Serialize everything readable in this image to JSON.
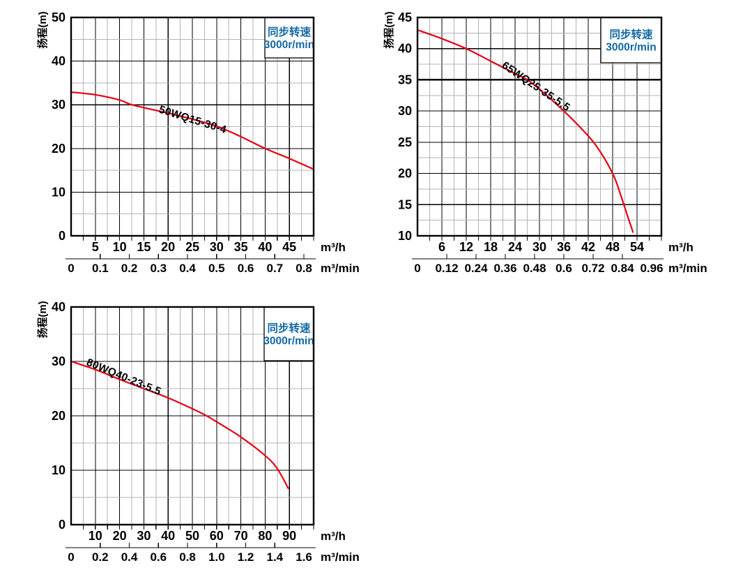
{
  "page": {
    "title": "Pump performance curves",
    "background": "#ffffff"
  },
  "colors": {
    "curve_red": "#e60012",
    "legend_blue": "#1168a6",
    "grid_major": "#000000",
    "grid_minor": "#b3b3b3",
    "text_black": "#000000",
    "plot_background": "#ffffff"
  },
  "chart_data": [
    {
      "type": "line",
      "title": "50WQ15-30-4",
      "ylabel": "扬程(m)",
      "xlabel": "m³/h",
      "xlabel_secondary": "m³/min",
      "legend": [
        "同步转速",
        "3000r/min"
      ],
      "legend_position": "top-right",
      "grid": "on",
      "xlim": [
        0,
        50
      ],
      "ylim": [
        0,
        50
      ],
      "x_major_step": 5,
      "x_minor_step": 2.5,
      "y_major_step": 10,
      "y_minor_step": 5,
      "x_tick_labels": [
        "5",
        "10",
        "15",
        "20",
        "25",
        "30",
        "35",
        "40",
        "45"
      ],
      "x_tick_values": [
        5,
        10,
        15,
        20,
        25,
        30,
        35,
        40,
        45
      ],
      "y_tick_labels": [
        "0",
        "10",
        "20",
        "30",
        "40",
        "50"
      ],
      "y_tick_values": [
        0,
        10,
        20,
        30,
        40,
        50
      ],
      "x2_labels": [
        "0",
        "0.1",
        "0.2",
        "0.3",
        "0.4",
        "0.5",
        "0.6",
        "0.7",
        "0.8"
      ],
      "x2_values": [
        0,
        0.1,
        0.2,
        0.3,
        0.4,
        0.5,
        0.6,
        0.7,
        0.8
      ],
      "x2_tick_values": [
        0.1,
        0.2,
        0.3,
        0.4,
        0.5,
        0.6,
        0.7,
        0.8
      ],
      "bold_y_line": null,
      "series": [
        {
          "name": "50WQ15-30-4",
          "points": [
            [
              0,
              32.9
            ],
            [
              5,
              32.3
            ],
            [
              10,
              31.1
            ],
            [
              12.5,
              30
            ],
            [
              18,
              28.6
            ],
            [
              24,
              27.0
            ],
            [
              30,
              25.1
            ],
            [
              35,
              22.7
            ],
            [
              40,
              20.0
            ],
            [
              45,
              17.7
            ],
            [
              49.7,
              15.4
            ]
          ]
        }
      ]
    },
    {
      "type": "line",
      "title": "65WQ25-35-5.5",
      "ylabel": "扬程(m)",
      "xlabel": "m³/h",
      "xlabel_secondary": "m³/min",
      "legend": [
        "同步转速",
        "3000r/min"
      ],
      "legend_position": "top-right",
      "grid": "on",
      "xlim": [
        0,
        60
      ],
      "ylim": [
        10,
        45
      ],
      "x_major_step": 6,
      "x_minor_step": 3,
      "y_major_step": 5,
      "y_minor_step": 2.5,
      "x_tick_labels": [
        "6",
        "12",
        "18",
        "24",
        "30",
        "36",
        "42",
        "48",
        "54"
      ],
      "x_tick_values": [
        6,
        12,
        18,
        24,
        30,
        36,
        42,
        48,
        54
      ],
      "y_tick_labels": [
        "10",
        "15",
        "20",
        "25",
        "30",
        "35",
        "40",
        "45"
      ],
      "y_tick_values": [
        10,
        15,
        20,
        25,
        30,
        35,
        40,
        45
      ],
      "x2_labels": [
        "0",
        "0.12",
        "0.24",
        "0.36",
        "0.48",
        "0.6",
        "0.72",
        "0.84",
        "0.96"
      ],
      "x2_values": [
        0,
        0.12,
        0.24,
        0.36,
        0.48,
        0.6,
        0.72,
        0.84,
        0.96
      ],
      "x2_tick_values": [
        0.12,
        0.24,
        0.36,
        0.48,
        0.6,
        0.72,
        0.84
      ],
      "bold_y_line": 35,
      "series": [
        {
          "name": "65WQ25-35-5.5",
          "points": [
            [
              0,
              43
            ],
            [
              6,
              41.6
            ],
            [
              12,
              40
            ],
            [
              18,
              38
            ],
            [
              24,
              36
            ],
            [
              27,
              35
            ],
            [
              30,
              33.5
            ],
            [
              36,
              30
            ],
            [
              40,
              27.4
            ],
            [
              44,
              24.4
            ],
            [
              48,
              20
            ],
            [
              50,
              16.5
            ],
            [
              51.5,
              13.5
            ],
            [
              53,
              10.6
            ]
          ]
        }
      ]
    },
    {
      "type": "line",
      "title": "80WQ40-23-5.5",
      "ylabel": "扬程(m)",
      "xlabel": "m³/h",
      "xlabel_secondary": "m³/min",
      "legend": [
        "同步转速",
        "3000r/min"
      ],
      "legend_position": "top-right",
      "grid": "on",
      "xlim": [
        0,
        100
      ],
      "ylim": [
        0,
        40
      ],
      "x_major_step": 10,
      "x_minor_step": 5,
      "y_major_step": 10,
      "y_minor_step": 5,
      "x_tick_labels": [
        "10",
        "20",
        "30",
        "40",
        "50",
        "60",
        "70",
        "80",
        "90"
      ],
      "x_tick_values": [
        10,
        20,
        30,
        40,
        50,
        60,
        70,
        80,
        90
      ],
      "y_tick_labels": [
        "0",
        "10",
        "20",
        "30",
        "40"
      ],
      "y_tick_values": [
        0,
        10,
        20,
        30,
        40
      ],
      "x2_labels": [
        "0",
        "0.2",
        "0.4",
        "0.6",
        "0.8",
        "1.0",
        "1.2",
        "1.4",
        "1.6"
      ],
      "x2_values": [
        0,
        0.2,
        0.4,
        0.6,
        0.8,
        1.0,
        1.2,
        1.4,
        1.6
      ],
      "x2_tick_values": [
        0.2,
        0.4,
        0.6,
        0.8,
        1.0,
        1.2,
        1.4
      ],
      "bold_y_line": null,
      "series": [
        {
          "name": "80WQ40-23-5.5",
          "points": [
            [
              0,
              30
            ],
            [
              10,
              28.5
            ],
            [
              20,
              26.7
            ],
            [
              30,
              25
            ],
            [
              40,
              23.3
            ],
            [
              50,
              21.3
            ],
            [
              55,
              20.2
            ],
            [
              60,
              18.9
            ],
            [
              70,
              16.1
            ],
            [
              80,
              12.7
            ],
            [
              85,
              10.3
            ],
            [
              89.5,
              6.7
            ]
          ]
        }
      ]
    }
  ]
}
